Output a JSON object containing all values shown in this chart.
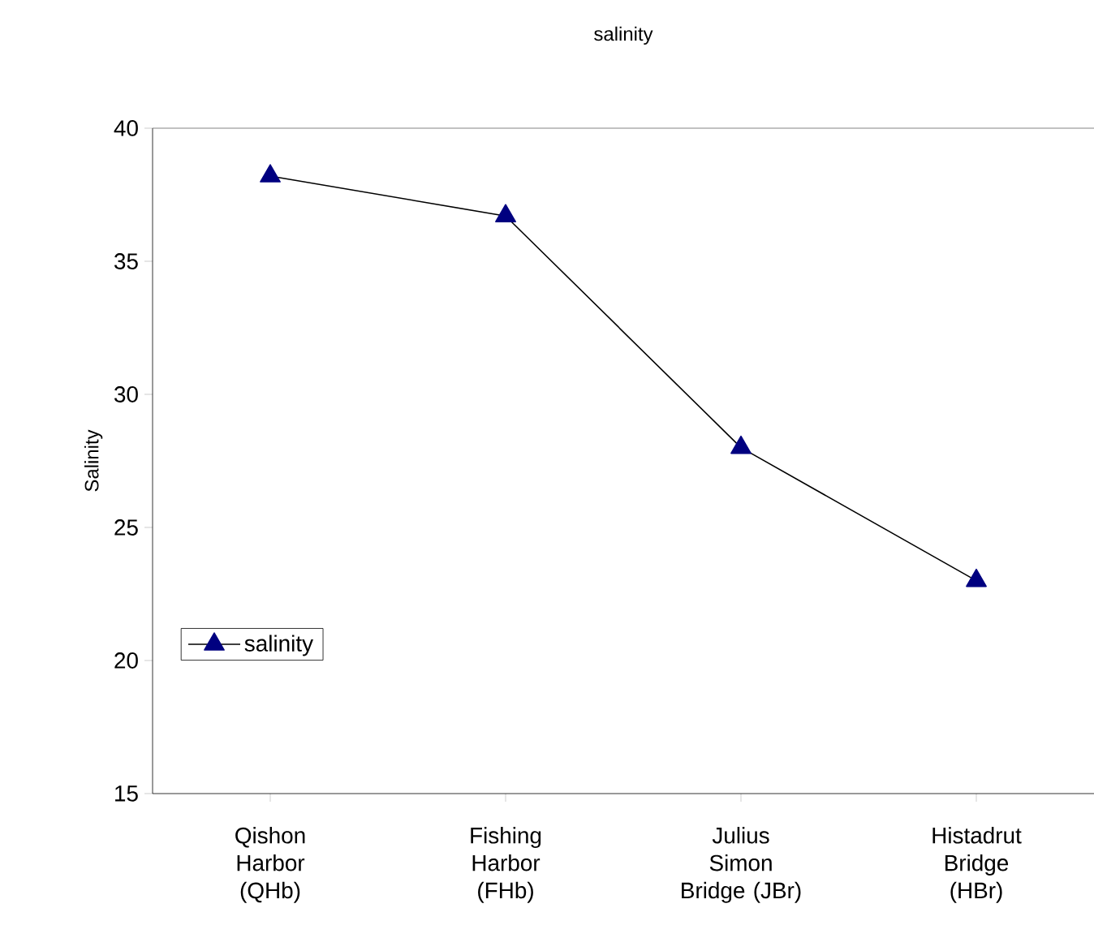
{
  "chart_data": {
    "type": "line",
    "title": "salinity",
    "ylabel": "Salinity",
    "categories": [
      "Qishon Harbor (QHb)",
      "Fishing Harbor (FHb)",
      "Julius Simon Bridge (JBr)",
      "Histadrut Bridge (HBr)"
    ],
    "series": [
      {
        "name": "salinity",
        "color": "#000080",
        "values": [
          38.2,
          36.7,
          28.0,
          23.0
        ]
      }
    ],
    "ylim": [
      15,
      40
    ],
    "yticks": [
      15,
      20,
      25,
      30,
      35,
      40
    ],
    "legend": "bottom left",
    "marker": "triangle",
    "line_style": "solid",
    "grid": false
  }
}
